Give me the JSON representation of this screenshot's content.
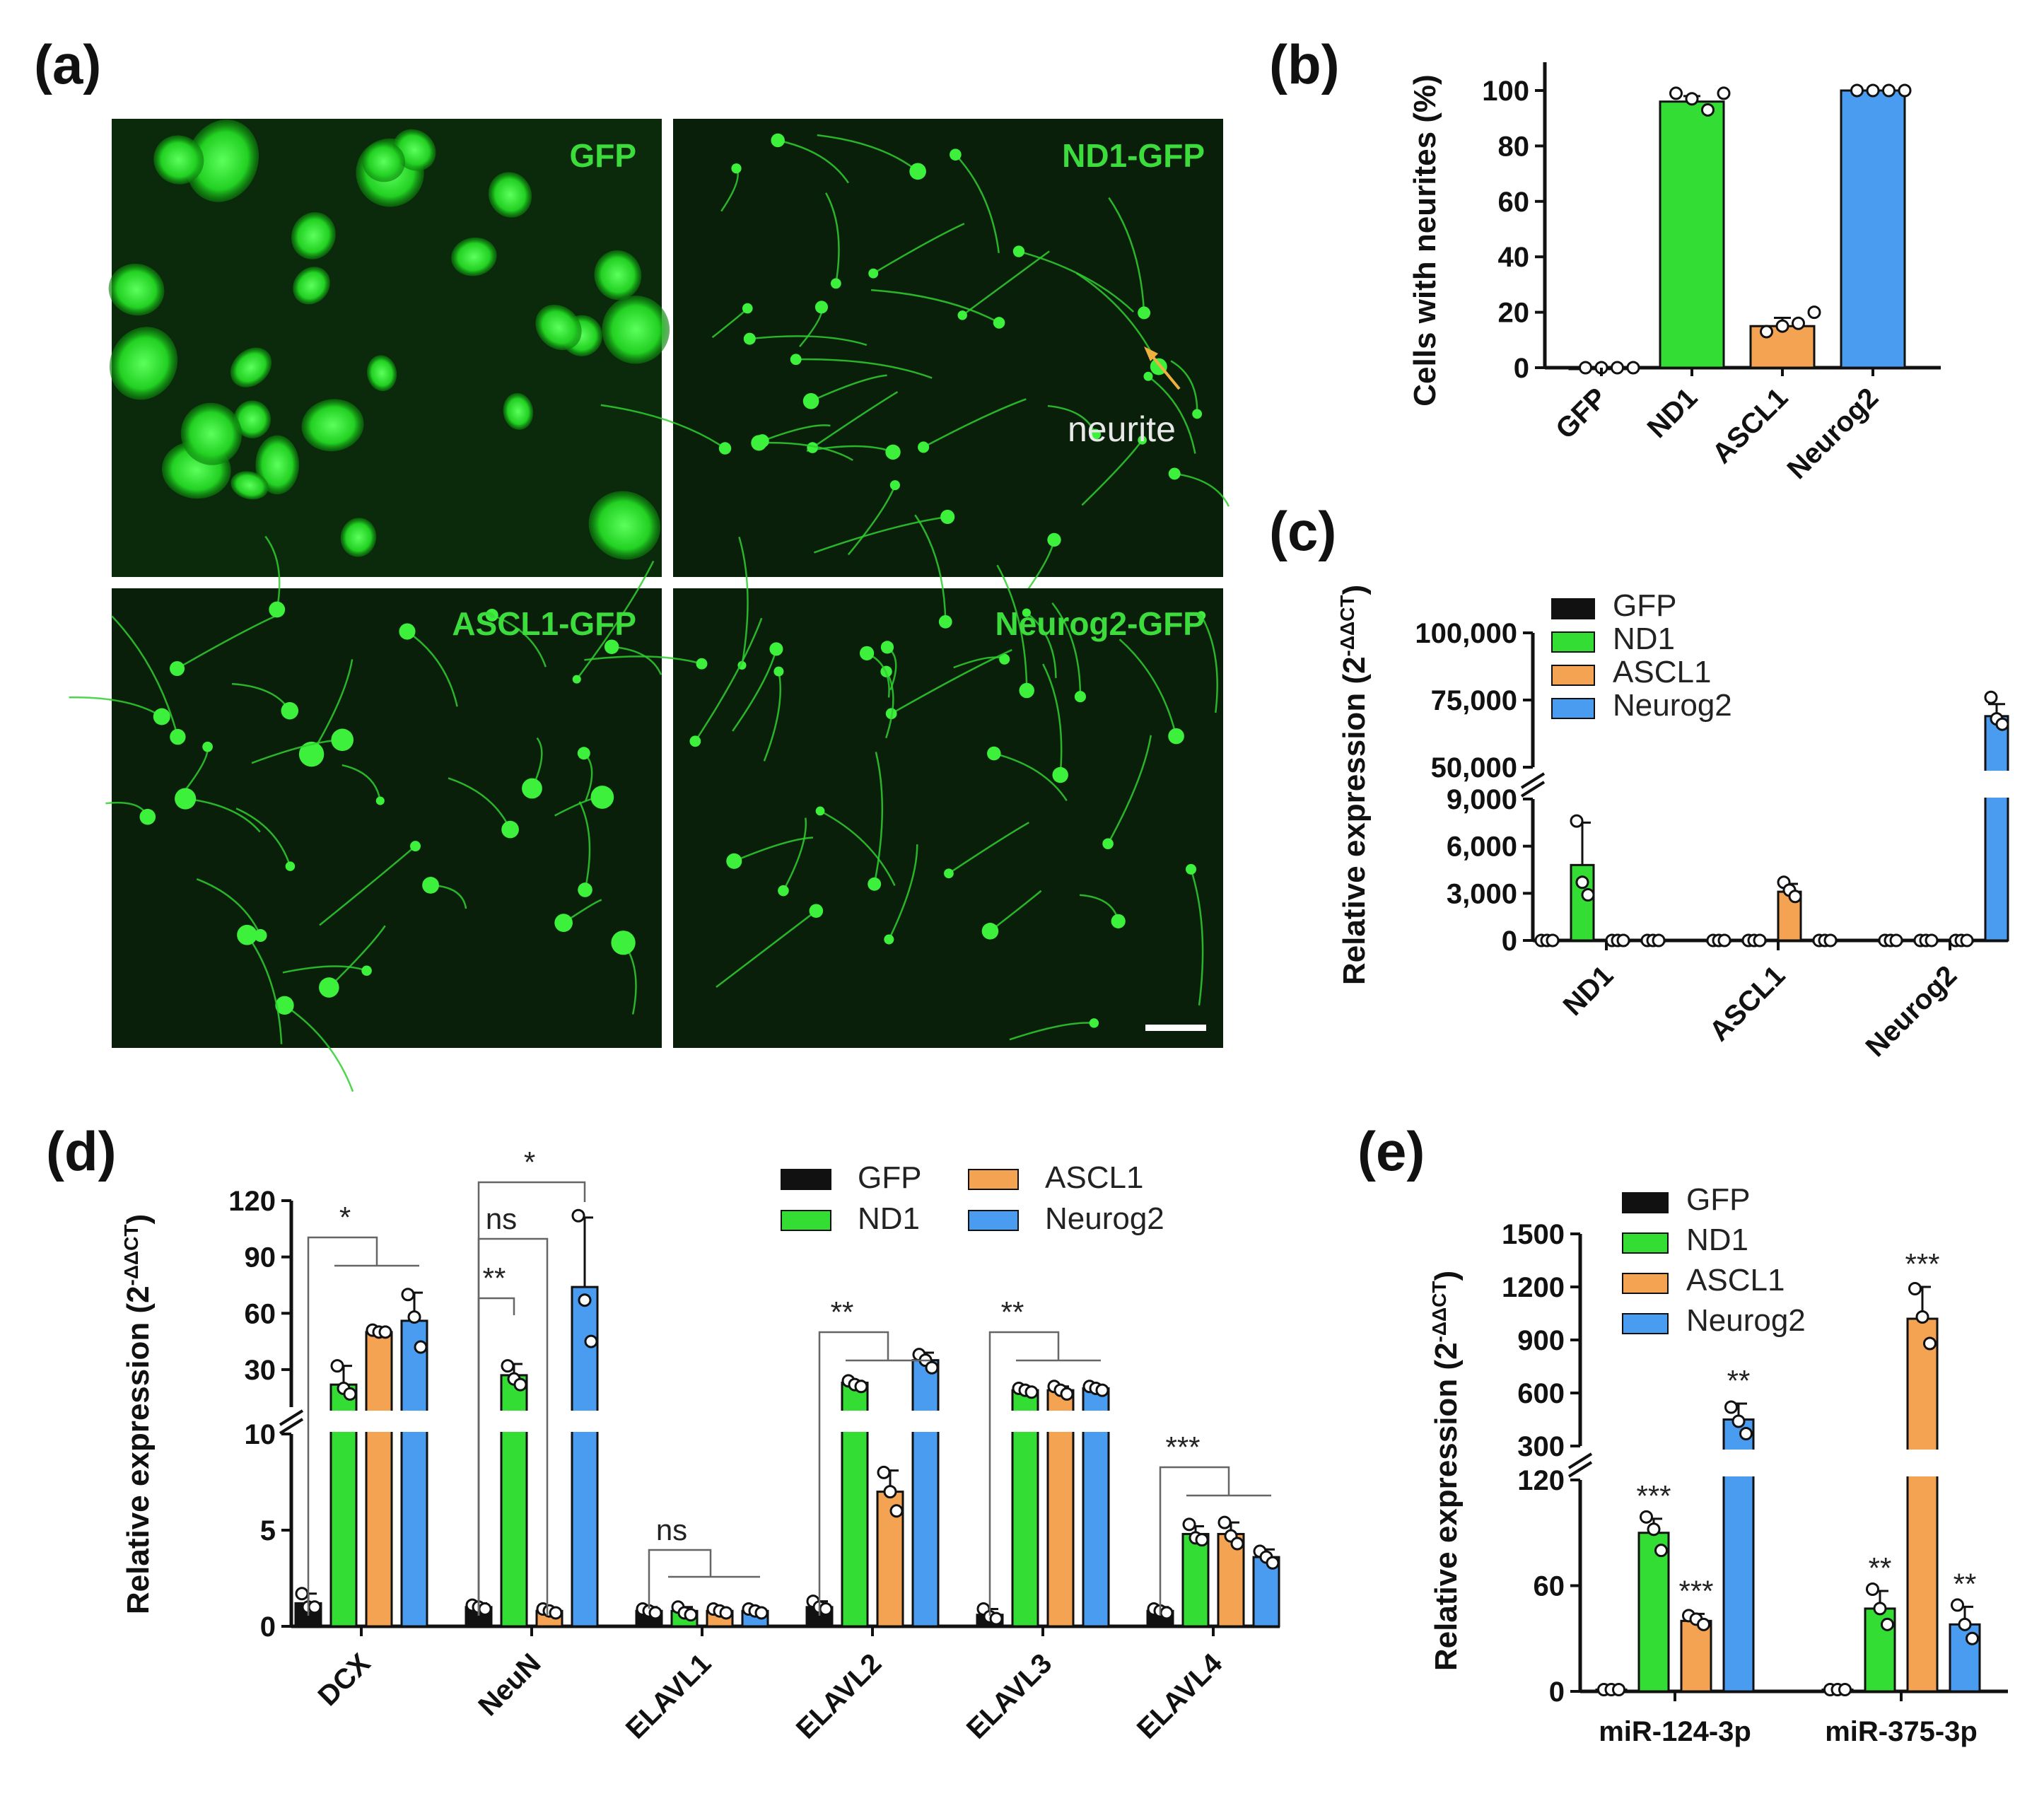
{
  "panels": {
    "a": {
      "label": "(a)",
      "tiles": [
        {
          "label": "GFP"
        },
        {
          "label": "ND1-GFP",
          "annotation": "neurite"
        },
        {
          "label": "ASCL1-GFP"
        },
        {
          "label": "Neurog2-GFP"
        }
      ]
    },
    "b": {
      "label": "(b)"
    },
    "c": {
      "label": "(c)"
    },
    "d": {
      "label": "(d)"
    },
    "e": {
      "label": "(e)"
    }
  },
  "colors": {
    "GFP": "#111111",
    "ND1": "#33dd33",
    "ASCL1": "#f4a352",
    "Neurog2": "#4a9cf0",
    "micrograph_text": "#3cdc3c",
    "arrow": "#f0b040"
  },
  "chart_data": [
    {
      "id": "b",
      "type": "bar",
      "ylabel": "Cells with neurites (%)",
      "ylim": [
        0,
        100
      ],
      "yticks": [
        "0",
        "20",
        "40",
        "60",
        "80",
        "100"
      ],
      "categories": [
        "GFP",
        "ND1",
        "ASCL1",
        "Neurog2"
      ],
      "values": [
        0,
        96,
        15,
        100
      ],
      "errors": [
        0,
        2,
        3,
        0
      ],
      "points": [
        [
          0,
          0,
          0,
          0
        ],
        [
          99,
          97,
          93,
          99
        ],
        [
          13,
          15,
          16,
          20
        ],
        [
          100,
          100,
          100,
          100
        ]
      ]
    },
    {
      "id": "c",
      "type": "bar",
      "ylabel": "Relative expression (2-ΔΔCT)",
      "axis_break": {
        "lower": [
          0,
          9000
        ],
        "upper": [
          50000,
          100000
        ]
      },
      "yticks_lower": [
        "0",
        "3,000",
        "6,000",
        "9,000"
      ],
      "yticks_upper": [
        "50,000",
        "75,000",
        "100,000"
      ],
      "legend": [
        "GFP",
        "ND1",
        "ASCL1",
        "Neurog2"
      ],
      "legend_position": "top-left",
      "categories": [
        "ND1",
        "ASCL1",
        "Neurog2"
      ],
      "series": [
        {
          "name": "GFP",
          "values": [
            1,
            1,
            1
          ],
          "errors": [
            0,
            0,
            0
          ],
          "points": [
            [
              1,
              1,
              1
            ],
            [
              1,
              1,
              1
            ],
            [
              1,
              1,
              1
            ]
          ]
        },
        {
          "name": "ND1",
          "values": [
            4800,
            1,
            1
          ],
          "errors": [
            2700,
            0,
            0
          ],
          "points": [
            [
              7600,
              3700,
              2900
            ],
            [
              1,
              1,
              1
            ],
            [
              1,
              1,
              1
            ]
          ]
        },
        {
          "name": "ASCL1",
          "values": [
            1,
            3100,
            1
          ],
          "errors": [
            0,
            500,
            0
          ],
          "points": [
            [
              1,
              1,
              1
            ],
            [
              3700,
              3200,
              2800
            ],
            [
              1,
              1,
              1
            ]
          ]
        },
        {
          "name": "Neurog2",
          "values": [
            1,
            1,
            69000
          ],
          "errors": [
            0,
            0,
            4500
          ],
          "points": [
            [
              1,
              1,
              1
            ],
            [
              1,
              1,
              1
            ],
            [
              76000,
              68000,
              66000
            ]
          ]
        }
      ]
    },
    {
      "id": "d",
      "type": "bar",
      "ylabel": "Relative expression (2-ΔΔCT)",
      "axis_break": {
        "lower": [
          0,
          10
        ],
        "upper": [
          10,
          120
        ]
      },
      "yticks_lower": [
        "0",
        "5",
        "10"
      ],
      "yticks_upper": [
        "30",
        "60",
        "90",
        "120"
      ],
      "legend": [
        "GFP",
        "ND1",
        "ASCL1",
        "Neurog2"
      ],
      "legend_position": "top-right",
      "categories": [
        "DCX",
        "NeuN",
        "ELAVL1",
        "ELAVL2",
        "ELAVL3",
        "ELAVL4"
      ],
      "series": [
        {
          "name": "GFP",
          "values": [
            1.2,
            1.0,
            0.8,
            1.0,
            0.6,
            0.8
          ],
          "errors": [
            0.5,
            0.2,
            0.2,
            0.3,
            0.3,
            0.2
          ],
          "points": [
            [
              1.7,
              1.0,
              1.0
            ],
            [
              1.1,
              1.0,
              0.9
            ],
            [
              0.9,
              0.8,
              0.7
            ],
            [
              1.3,
              1.0,
              0.9
            ],
            [
              0.9,
              0.5,
              0.4
            ],
            [
              0.9,
              0.8,
              0.7
            ]
          ]
        },
        {
          "name": "ND1",
          "values": [
            22,
            27,
            0.8,
            23,
            19,
            4.8
          ],
          "errors": [
            10,
            6,
            0.2,
            1,
            1,
            0.4
          ],
          "points": [
            [
              32,
              20,
              17
            ],
            [
              32,
              25,
              22
            ],
            [
              1.0,
              0.7,
              0.6
            ],
            [
              24,
              22,
              21
            ],
            [
              20,
              19,
              18
            ],
            [
              5.3,
              4.6,
              4.5
            ]
          ]
        },
        {
          "name": "ASCL1",
          "values": [
            50,
            0.8,
            0.8,
            7,
            19,
            4.8
          ],
          "errors": [
            1,
            0.1,
            0.1,
            1.1,
            2,
            0.6
          ],
          "points": [
            [
              51,
              50,
              50
            ],
            [
              0.9,
              0.8,
              0.7
            ],
            [
              0.9,
              0.8,
              0.7
            ],
            [
              8,
              7,
              6
            ],
            [
              21,
              19,
              17
            ],
            [
              5.4,
              4.7,
              4.3
            ]
          ]
        },
        {
          "name": "Neurog2",
          "values": [
            56,
            74,
            0.8,
            35,
            20,
            3.6
          ],
          "errors": [
            15,
            37,
            0.1,
            4,
            1,
            0.4
          ],
          "points": [
            [
              70,
              58,
              42
            ],
            [
              112,
              67,
              45
            ],
            [
              0.9,
              0.8,
              0.7
            ],
            [
              38,
              35,
              31
            ],
            [
              21,
              20,
              19
            ],
            [
              3.9,
              3.6,
              3.3
            ]
          ]
        }
      ],
      "significance": [
        {
          "category": "DCX",
          "label": "*"
        },
        {
          "category": "NeuN",
          "label": "*"
        },
        {
          "category": "NeuN",
          "label": "ns"
        },
        {
          "category": "NeuN",
          "label": "**"
        },
        {
          "category": "ELAVL1",
          "label": "ns"
        },
        {
          "category": "ELAVL2",
          "label": "**"
        },
        {
          "category": "ELAVL3",
          "label": "**"
        },
        {
          "category": "ELAVL4",
          "label": "***"
        }
      ]
    },
    {
      "id": "e",
      "type": "bar",
      "ylabel": "Relative expression (2-ΔΔCT)",
      "axis_break": {
        "lower": [
          0,
          120
        ],
        "upper": [
          300,
          1500
        ]
      },
      "yticks_lower": [
        "0",
        "60",
        "120"
      ],
      "yticks_upper": [
        "300",
        "600",
        "900",
        "1200",
        "1500"
      ],
      "legend": [
        "GFP",
        "ND1",
        "ASCL1",
        "Neurog2"
      ],
      "legend_position": "top-left",
      "categories": [
        "miR-124-3p",
        "miR-375-3p"
      ],
      "series": [
        {
          "name": "GFP",
          "values": [
            1,
            1
          ],
          "errors": [
            0,
            0
          ],
          "points": [
            [
              1,
              1,
              1
            ],
            [
              1,
              1,
              1
            ]
          ],
          "sig": [
            "",
            ""
          ]
        },
        {
          "name": "ND1",
          "values": [
            90,
            47
          ],
          "errors": [
            8,
            10
          ],
          "points": [
            [
              99,
              92,
              80
            ],
            [
              58,
              47,
              38
            ]
          ],
          "sig": [
            "***",
            "**"
          ]
        },
        {
          "name": "ASCL1",
          "values": [
            40,
            1020
          ],
          "errors": [
            4,
            180
          ],
          "points": [
            [
              43,
              41,
              38
            ],
            [
              1190,
              1030,
              880
            ]
          ],
          "sig": [
            "***",
            "***"
          ]
        },
        {
          "name": "Neurog2",
          "values": [
            450,
            38
          ],
          "errors": [
            90,
            10
          ],
          "points": [
            [
              520,
              440,
              370
            ],
            [
              49,
              38,
              30
            ]
          ],
          "sig": [
            "**",
            "**"
          ]
        }
      ]
    }
  ]
}
